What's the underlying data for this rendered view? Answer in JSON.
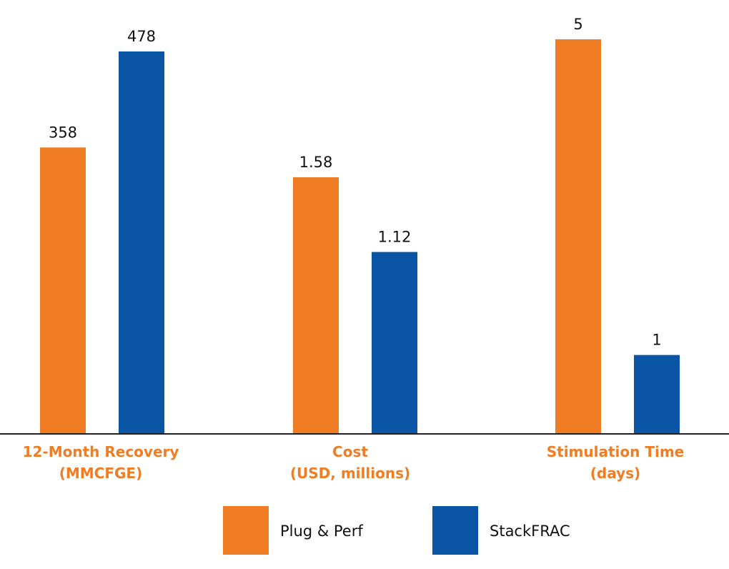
{
  "chart_data": {
    "type": "bar",
    "grouped_by_category": true,
    "independent_scales_per_group": true,
    "categories": [
      {
        "line1": "12-Month Recovery",
        "line2": "(MMCFGE)"
      },
      {
        "line1": "Cost",
        "line2": "(USD, millions)"
      },
      {
        "line1": "Stimulation Time",
        "line2": "(days)"
      }
    ],
    "series": [
      {
        "name": "Plug & Perf",
        "color": "#F07D23",
        "values": [
          358,
          1.58,
          5
        ],
        "labels": [
          "358",
          "1.58",
          "5"
        ]
      },
      {
        "name": "StackFRAC",
        "color": "#0A56A5",
        "values": [
          478,
          1.12,
          1
        ],
        "labels": [
          "478",
          "1.12",
          "1"
        ]
      }
    ],
    "category_label_color": "#F07D23",
    "axis_color": "#222222",
    "legend_position": "bottom-center",
    "title": "",
    "xlabel": "",
    "ylabel": "",
    "grid": false,
    "show_y_axis": false
  }
}
